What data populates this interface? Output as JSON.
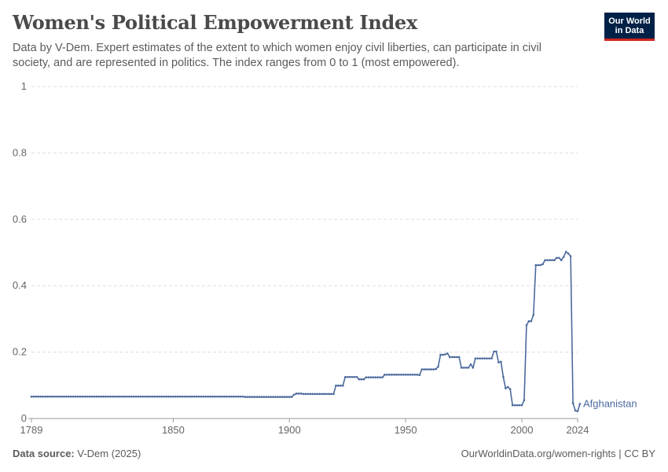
{
  "header": {
    "title": "Women's Political Empowerment Index",
    "subtitle": "Data by V-Dem. Expert estimates of the extent to which women enjoy civil liberties, can participate in civil society, and are represented in politics. The index ranges from 0 to 1 (most empowered).",
    "logo_line1": "Our World",
    "logo_line2": "in Data"
  },
  "footer": {
    "source_label": "Data source:",
    "source_value": "V-Dem (2025)",
    "link": "OurWorldinData.org/women-rights | CC BY"
  },
  "colors": {
    "series": "#4c6a9c",
    "grid": "#dddddd",
    "axis": "#999999",
    "logo_bg": "#002147",
    "logo_accent": "#ce261e"
  },
  "chart_data": {
    "type": "line",
    "xlim": [
      1789,
      2024
    ],
    "ylim": [
      0,
      1
    ],
    "x_ticks": [
      1789,
      1850,
      1900,
      1950,
      2000,
      2024
    ],
    "y_ticks": [
      0,
      0.2,
      0.4,
      0.6,
      0.8,
      1
    ],
    "y_tick_labels": [
      "0",
      "0.2",
      "0.4",
      "0.6",
      "0.8",
      "1"
    ],
    "grid": "horizontal dashed",
    "series": [
      {
        "name": "Afghanistan",
        "points": [
          [
            1789,
            0.066
          ],
          [
            1880,
            0.066
          ],
          [
            1881,
            0.065
          ],
          [
            1901,
            0.065
          ],
          [
            1902,
            0.072
          ],
          [
            1903,
            0.075
          ],
          [
            1906,
            0.074
          ],
          [
            1918,
            0.074
          ],
          [
            1920,
            0.099
          ],
          [
            1923,
            0.099
          ],
          [
            1924,
            0.125
          ],
          [
            1929,
            0.125
          ],
          [
            1930,
            0.118
          ],
          [
            1932,
            0.118
          ],
          [
            1933,
            0.124
          ],
          [
            1940,
            0.124
          ],
          [
            1941,
            0.132
          ],
          [
            1955,
            0.132
          ],
          [
            1956,
            0.131
          ],
          [
            1957,
            0.148
          ],
          [
            1963,
            0.149
          ],
          [
            1964,
            0.156
          ],
          [
            1965,
            0.192
          ],
          [
            1967,
            0.193
          ],
          [
            1968,
            0.196
          ],
          [
            1969,
            0.185
          ],
          [
            1973,
            0.185
          ],
          [
            1974,
            0.153
          ],
          [
            1977,
            0.153
          ],
          [
            1978,
            0.163
          ],
          [
            1979,
            0.153
          ],
          [
            1980,
            0.181
          ],
          [
            1987,
            0.181
          ],
          [
            1988,
            0.202
          ],
          [
            1989,
            0.202
          ],
          [
            1990,
            0.169
          ],
          [
            1991,
            0.171
          ],
          [
            1992,
            0.126
          ],
          [
            1993,
            0.091
          ],
          [
            1994,
            0.095
          ],
          [
            1995,
            0.088
          ],
          [
            1996,
            0.04
          ],
          [
            2000,
            0.04
          ],
          [
            2001,
            0.055
          ],
          [
            2002,
            0.281
          ],
          [
            2003,
            0.293
          ],
          [
            2004,
            0.293
          ],
          [
            2005,
            0.312
          ],
          [
            2006,
            0.462
          ],
          [
            2009,
            0.465
          ],
          [
            2010,
            0.477
          ],
          [
            2014,
            0.477
          ],
          [
            2015,
            0.484
          ],
          [
            2016,
            0.484
          ],
          [
            2017,
            0.477
          ],
          [
            2018,
            0.487
          ],
          [
            2019,
            0.502
          ],
          [
            2020,
            0.497
          ],
          [
            2021,
            0.489
          ],
          [
            2022,
            0.046
          ],
          [
            2023,
            0.024
          ],
          [
            2024,
            0.022
          ],
          [
            2025,
            0.044
          ]
        ]
      }
    ]
  }
}
